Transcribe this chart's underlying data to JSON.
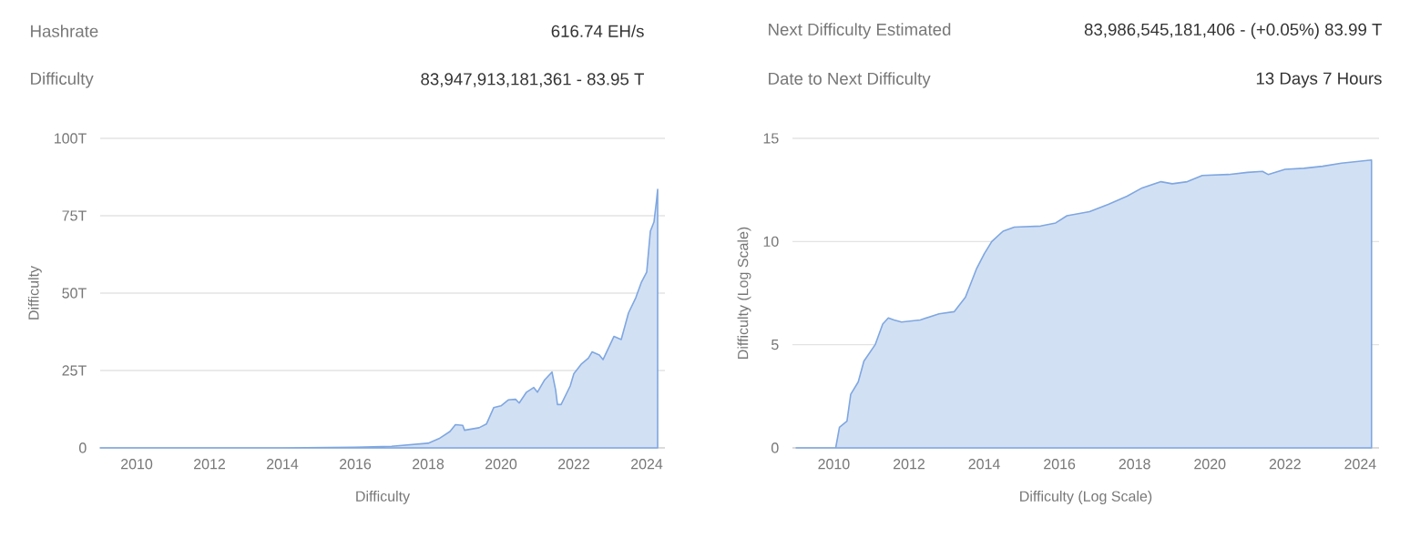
{
  "chart_data": [
    {
      "type": "other",
      "annotations": [
        "Hashrate",
        "616.74 EH/s",
        "Difficulty",
        "83,947,913,181,361 - 83.95 T",
        "Next Difficulty Estimated",
        "83,986,545,181,406 - (+0.05%) 83.99 T",
        "Date to Next Difficulty",
        "13 Days 7 Hours"
      ]
    },
    {
      "type": "area",
      "xlabel": "Difficulty",
      "ylabel": "Difficulty",
      "xlim": [
        2009,
        2024.5
      ],
      "ylim": [
        0,
        100
      ],
      "xticks": [
        2010,
        2012,
        2014,
        2016,
        2018,
        2020,
        2022,
        2024
      ],
      "yticks": [
        0,
        {
          "value": 25,
          "label": "25T"
        },
        {
          "value": 50,
          "label": "50T"
        },
        {
          "value": 75,
          "label": "75T"
        },
        {
          "value": 100,
          "label": "100T"
        }
      ],
      "grid": "y",
      "series": [
        {
          "color": "#7fa7e0",
          "x": [
            2009,
            2010,
            2012,
            2014,
            2016,
            2017,
            2017.5,
            2018,
            2018.3,
            2018.6,
            2018.75,
            2018.95,
            2019.0,
            2019.4,
            2019.6,
            2019.8,
            2020.0,
            2020.2,
            2020.4,
            2020.5,
            2020.7,
            2020.9,
            2021.0,
            2021.2,
            2021.4,
            2021.5,
            2021.55,
            2021.65,
            2021.9,
            2022.0,
            2022.2,
            2022.4,
            2022.5,
            2022.7,
            2022.8,
            2022.9,
            2023.1,
            2023.3,
            2023.5,
            2023.7,
            2023.85,
            2024.0,
            2024.1,
            2024.2,
            2024.27,
            2024.3
          ],
          "values": [
            0,
            0,
            0,
            0,
            0.2,
            0.5,
            1,
            1.5,
            3,
            5.3,
            7.5,
            7.3,
            5.7,
            6.5,
            7.7,
            13,
            13.6,
            15.5,
            15.7,
            14.5,
            18,
            19.5,
            18,
            22,
            24.5,
            18.7,
            14,
            14,
            20,
            24,
            27,
            29,
            31,
            30,
            28.5,
            31,
            36,
            35,
            43.6,
            48.5,
            53.4,
            56.8,
            70,
            73,
            80,
            83.5
          ]
        }
      ]
    },
    {
      "type": "area",
      "xlabel": "Difficulty (Log Scale)",
      "ylabel": "Difficulty (Log Scale)",
      "xlim": [
        2008.9,
        2024.5
      ],
      "ylim": [
        0,
        15
      ],
      "xticks": [
        2010,
        2012,
        2014,
        2016,
        2018,
        2020,
        2022,
        2024
      ],
      "yticks": [
        0,
        5,
        10,
        15
      ],
      "grid": "y",
      "series": [
        {
          "color": "#7fa7e0",
          "x": [
            2009,
            2010.05,
            2010.15,
            2010.35,
            2010.45,
            2010.65,
            2010.8,
            2011.1,
            2011.3,
            2011.45,
            2011.6,
            2011.8,
            2012.3,
            2012.8,
            2013.2,
            2013.5,
            2013.8,
            2014.0,
            2014.2,
            2014.5,
            2014.8,
            2015.5,
            2015.9,
            2016.2,
            2016.8,
            2017.3,
            2017.8,
            2018.2,
            2018.7,
            2019.0,
            2019.4,
            2019.8,
            2020.5,
            2021.0,
            2021.4,
            2021.55,
            2022.0,
            2022.5,
            2023.0,
            2023.5,
            2024.3
          ],
          "values": [
            0,
            0,
            1,
            1.3,
            2.6,
            3.2,
            4.2,
            5.0,
            6.0,
            6.3,
            6.2,
            6.1,
            6.2,
            6.5,
            6.6,
            7.3,
            8.7,
            9.4,
            10.0,
            10.5,
            10.7,
            10.75,
            10.9,
            11.25,
            11.45,
            11.8,
            12.2,
            12.6,
            12.9,
            12.8,
            12.9,
            13.2,
            13.25,
            13.35,
            13.4,
            13.25,
            13.5,
            13.55,
            13.65,
            13.8,
            13.95
          ]
        }
      ]
    }
  ]
}
